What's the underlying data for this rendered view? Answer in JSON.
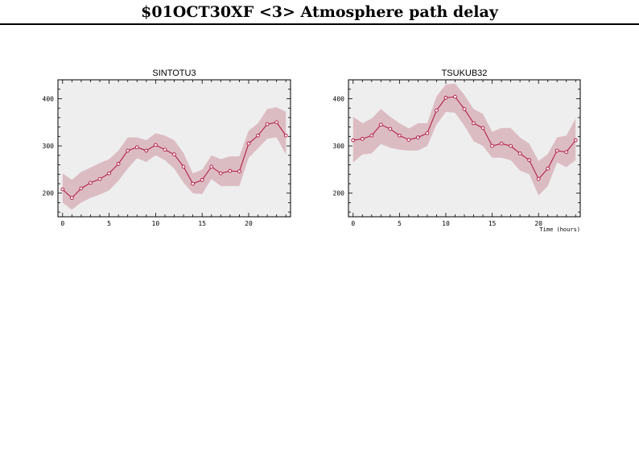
{
  "page": {
    "title": "$01OCT30XF <3>  Atmosphere path delay"
  },
  "colors": {
    "plot_background": "#eeeeee",
    "band": "#dcbcc3",
    "line": "#b0103a",
    "frame": "#000000"
  },
  "chart_data": [
    {
      "type": "line",
      "title": "SINTOTU3",
      "xlabel": "",
      "ylabel": "",
      "xlim": [
        -0.5,
        24.5
      ],
      "ylim": [
        150,
        440
      ],
      "xticks": [
        0,
        5,
        10,
        15,
        20
      ],
      "yticks": [
        200,
        300,
        400
      ],
      "series": [
        {
          "x": [
            0,
            1,
            2,
            3,
            4,
            5,
            6,
            7,
            8,
            9,
            10,
            11,
            12,
            13,
            14,
            15,
            16,
            17,
            18,
            19,
            20,
            21,
            22,
            23,
            24
          ],
          "y": [
            208,
            190,
            210,
            222,
            230,
            242,
            262,
            290,
            297,
            290,
            302,
            292,
            282,
            256,
            220,
            228,
            256,
            242,
            247,
            246,
            305,
            322,
            346,
            350,
            322
          ],
          "upper": [
            242,
            228,
            245,
            254,
            264,
            272,
            290,
            318,
            318,
            312,
            327,
            322,
            312,
            285,
            242,
            250,
            280,
            272,
            278,
            278,
            332,
            348,
            378,
            382,
            372
          ],
          "lower": [
            180,
            165,
            180,
            190,
            197,
            206,
            226,
            252,
            274,
            266,
            280,
            270,
            252,
            222,
            200,
            198,
            230,
            215,
            215,
            215,
            275,
            295,
            315,
            318,
            282
          ]
        }
      ]
    },
    {
      "type": "line",
      "title": "TSUKUB32",
      "xlabel": "Time (hours)",
      "ylabel": "",
      "xlim": [
        -0.5,
        24.5
      ],
      "ylim": [
        150,
        440
      ],
      "xticks": [
        0,
        5,
        10,
        15,
        20
      ],
      "yticks": [
        200,
        300,
        400
      ],
      "series": [
        {
          "x": [
            0,
            1,
            2,
            3,
            4,
            5,
            6,
            7,
            8,
            9,
            10,
            11,
            12,
            13,
            14,
            15,
            16,
            17,
            18,
            19,
            20,
            21,
            22,
            23,
            24
          ],
          "y": [
            312,
            315,
            322,
            345,
            336,
            322,
            313,
            318,
            327,
            375,
            402,
            404,
            378,
            348,
            338,
            300,
            305,
            300,
            284,
            270,
            230,
            252,
            290,
            287,
            312
          ],
          "upper": [
            362,
            348,
            358,
            378,
            362,
            348,
            337,
            348,
            348,
            405,
            430,
            432,
            408,
            378,
            368,
            330,
            338,
            338,
            318,
            305,
            268,
            283,
            318,
            322,
            358
          ],
          "lower": [
            265,
            282,
            284,
            304,
            296,
            292,
            290,
            290,
            300,
            345,
            372,
            370,
            343,
            310,
            300,
            275,
            275,
            270,
            248,
            240,
            195,
            215,
            265,
            255,
            270
          ]
        }
      ]
    }
  ]
}
